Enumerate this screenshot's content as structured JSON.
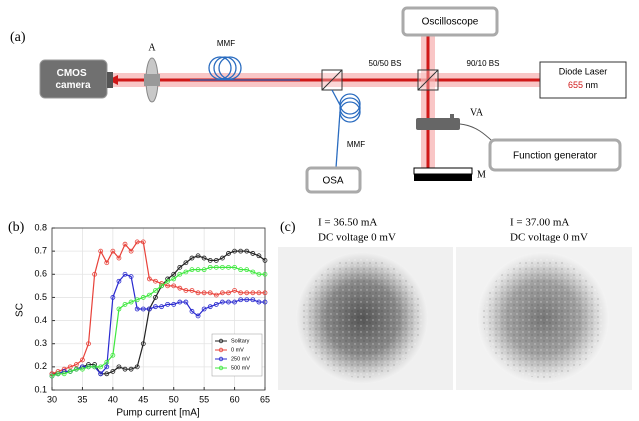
{
  "diagram": {
    "label": "(a)",
    "camera": [
      "CMOS",
      "camera"
    ],
    "aperture": "A",
    "fiber_top": "MMF",
    "bs_5050": "50/50 BS",
    "bs_9010": "90/10 BS",
    "laser": {
      "name": "Diode Laser",
      "wavelength": "655",
      "unit": "nm"
    },
    "oscilloscope": "Oscilloscope",
    "attenuator": "VA",
    "function_generator": "Function generator",
    "fiber_bottom": "MMF",
    "osa": "OSA",
    "mirror": "M"
  },
  "chart_data": {
    "type": "line",
    "label": "(b)",
    "x_label": "Pump current [mA]",
    "y_label": "SC",
    "x": [
      30,
      31,
      32,
      33,
      34,
      35,
      36,
      37,
      38,
      39,
      40,
      41,
      42,
      43,
      44,
      45,
      46,
      47,
      48,
      49,
      50,
      51,
      52,
      53,
      54,
      55,
      56,
      57,
      58,
      59,
      60,
      61,
      62,
      63,
      64,
      65
    ],
    "series": [
      {
        "name": "Solitary",
        "color": "#222222",
        "values": [
          0.17,
          0.17,
          0.18,
          0.18,
          0.19,
          0.2,
          0.21,
          0.21,
          0.17,
          0.17,
          0.18,
          0.2,
          0.19,
          0.19,
          0.2,
          0.3,
          0.45,
          0.5,
          0.55,
          0.58,
          0.6,
          0.63,
          0.65,
          0.67,
          0.68,
          0.67,
          0.66,
          0.66,
          0.67,
          0.69,
          0.7,
          0.7,
          0.7,
          0.69,
          0.68,
          0.66
        ]
      },
      {
        "name": "0 mV",
        "color": "#e8423a",
        "values": [
          0.17,
          0.18,
          0.19,
          0.2,
          0.21,
          0.23,
          0.3,
          0.6,
          0.7,
          0.65,
          0.7,
          0.67,
          0.73,
          0.7,
          0.74,
          0.74,
          0.58,
          0.57,
          0.56,
          0.55,
          0.55,
          0.54,
          0.53,
          0.53,
          0.52,
          0.52,
          0.52,
          0.51,
          0.52,
          0.52,
          0.53,
          0.52,
          0.52,
          0.52,
          0.52,
          0.52
        ]
      },
      {
        "name": "250 mV",
        "color": "#2a2ad0",
        "values": [
          0.16,
          0.17,
          0.18,
          0.18,
          0.19,
          0.2,
          0.2,
          0.2,
          0.17,
          0.2,
          0.5,
          0.57,
          0.6,
          0.59,
          0.45,
          0.45,
          0.45,
          0.46,
          0.46,
          0.47,
          0.47,
          0.48,
          0.48,
          0.44,
          0.42,
          0.45,
          0.46,
          0.47,
          0.48,
          0.48,
          0.48,
          0.49,
          0.49,
          0.49,
          0.48,
          0.48
        ]
      },
      {
        "name": "500 mV",
        "color": "#3ee83e",
        "values": [
          0.16,
          0.17,
          0.17,
          0.18,
          0.19,
          0.19,
          0.2,
          0.2,
          0.2,
          0.22,
          0.25,
          0.45,
          0.47,
          0.48,
          0.49,
          0.5,
          0.51,
          0.53,
          0.55,
          0.57,
          0.58,
          0.6,
          0.61,
          0.62,
          0.62,
          0.62,
          0.63,
          0.63,
          0.63,
          0.63,
          0.63,
          0.62,
          0.62,
          0.61,
          0.6,
          0.6
        ]
      }
    ],
    "xlim": [
      30,
      65
    ],
    "xticks": [
      30,
      35,
      40,
      45,
      50,
      55,
      60,
      65
    ],
    "ylim": [
      0.1,
      0.8
    ],
    "yticks": [
      0.1,
      0.2,
      0.3,
      0.4,
      0.5,
      0.6,
      0.7,
      0.8
    ],
    "grid": true,
    "legend": "lower right"
  },
  "images": {
    "label": "(c)",
    "panels": [
      {
        "current": "I = 36.50 mA",
        "voltage": "DC voltage 0 mV"
      },
      {
        "current": "I = 37.00 mA",
        "voltage": "DC voltage 0 mV"
      }
    ]
  }
}
